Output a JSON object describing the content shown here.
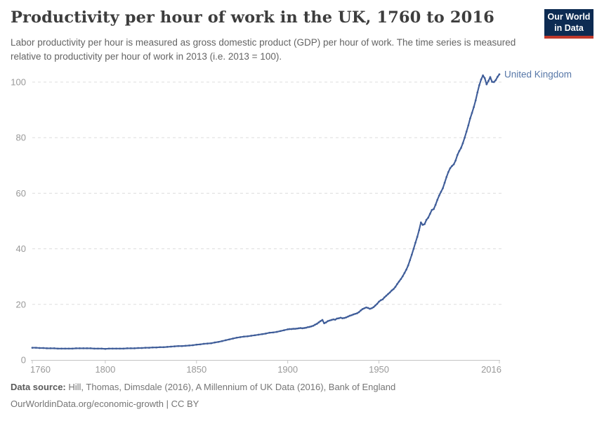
{
  "header": {
    "title": "Productivity per hour of work in the UK, 1760 to 2016",
    "subtitle": "Labor productivity per hour is measured as gross domestic product (GDP) per hour of work. The time series is measured relative to productivity per hour of work in 2013 (i.e. 2013 = 100).",
    "logo_line1": "Our World",
    "logo_line2": "in Data",
    "logo_bg_color": "#0d2b52",
    "logo_stripe_color": "#c0392b"
  },
  "chart_data": {
    "type": "line",
    "title": "Productivity per hour of work in the UK, 1760 to 2016",
    "xlabel": "",
    "ylabel": "",
    "xlim": [
      1760,
      2016
    ],
    "ylim": [
      0,
      105
    ],
    "x_ticks": [
      1760,
      1800,
      1850,
      1900,
      1950,
      2016
    ],
    "y_ticks": [
      0,
      20,
      40,
      60,
      80,
      100
    ],
    "grid": "dashed-horizontal",
    "legend": "end-of-line-label",
    "grid_color": "#dddddd",
    "axis_color": "#c4c4c4",
    "tick_text_color": "#999999",
    "series": [
      {
        "name": "United Kingdom",
        "color": "#3f5d99",
        "label_color": "#5878a8",
        "points": [
          [
            1760,
            4.4
          ],
          [
            1762,
            4.4
          ],
          [
            1764,
            4.3
          ],
          [
            1766,
            4.3
          ],
          [
            1768,
            4.2
          ],
          [
            1770,
            4.2
          ],
          [
            1772,
            4.2
          ],
          [
            1774,
            4.1
          ],
          [
            1776,
            4.1
          ],
          [
            1778,
            4.1
          ],
          [
            1780,
            4.1
          ],
          [
            1782,
            4.1
          ],
          [
            1784,
            4.2
          ],
          [
            1786,
            4.2
          ],
          [
            1788,
            4.2
          ],
          [
            1790,
            4.2
          ],
          [
            1792,
            4.2
          ],
          [
            1794,
            4.1
          ],
          [
            1796,
            4.1
          ],
          [
            1798,
            4.1
          ],
          [
            1800,
            4.0
          ],
          [
            1802,
            4.1
          ],
          [
            1804,
            4.1
          ],
          [
            1806,
            4.1
          ],
          [
            1808,
            4.1
          ],
          [
            1810,
            4.1
          ],
          [
            1812,
            4.2
          ],
          [
            1814,
            4.2
          ],
          [
            1816,
            4.2
          ],
          [
            1818,
            4.3
          ],
          [
            1820,
            4.3
          ],
          [
            1822,
            4.4
          ],
          [
            1824,
            4.4
          ],
          [
            1826,
            4.5
          ],
          [
            1828,
            4.5
          ],
          [
            1830,
            4.6
          ],
          [
            1832,
            4.6
          ],
          [
            1834,
            4.7
          ],
          [
            1836,
            4.8
          ],
          [
            1838,
            4.9
          ],
          [
            1840,
            5.0
          ],
          [
            1842,
            5.0
          ],
          [
            1844,
            5.1
          ],
          [
            1846,
            5.2
          ],
          [
            1848,
            5.3
          ],
          [
            1850,
            5.5
          ],
          [
            1852,
            5.6
          ],
          [
            1854,
            5.8
          ],
          [
            1856,
            5.9
          ],
          [
            1858,
            6.0
          ],
          [
            1860,
            6.3
          ],
          [
            1862,
            6.5
          ],
          [
            1864,
            6.8
          ],
          [
            1866,
            7.1
          ],
          [
            1868,
            7.4
          ],
          [
            1870,
            7.7
          ],
          [
            1872,
            8.0
          ],
          [
            1874,
            8.2
          ],
          [
            1876,
            8.4
          ],
          [
            1878,
            8.5
          ],
          [
            1880,
            8.7
          ],
          [
            1882,
            8.9
          ],
          [
            1884,
            9.1
          ],
          [
            1886,
            9.3
          ],
          [
            1888,
            9.5
          ],
          [
            1890,
            9.8
          ],
          [
            1892,
            9.9
          ],
          [
            1894,
            10.1
          ],
          [
            1896,
            10.4
          ],
          [
            1898,
            10.7
          ],
          [
            1900,
            11.0
          ],
          [
            1901,
            11.1
          ],
          [
            1902,
            11.1
          ],
          [
            1903,
            11.2
          ],
          [
            1904,
            11.2
          ],
          [
            1905,
            11.3
          ],
          [
            1906,
            11.4
          ],
          [
            1907,
            11.5
          ],
          [
            1908,
            11.4
          ],
          [
            1909,
            11.5
          ],
          [
            1910,
            11.6
          ],
          [
            1911,
            11.8
          ],
          [
            1912,
            11.9
          ],
          [
            1913,
            12.1
          ],
          [
            1914,
            12.3
          ],
          [
            1915,
            12.7
          ],
          [
            1916,
            13.0
          ],
          [
            1917,
            13.5
          ],
          [
            1918,
            14.0
          ],
          [
            1919,
            14.4
          ],
          [
            1920,
            13.2
          ],
          [
            1921,
            13.5
          ],
          [
            1922,
            14.0
          ],
          [
            1923,
            14.2
          ],
          [
            1924,
            14.4
          ],
          [
            1925,
            14.6
          ],
          [
            1926,
            14.5
          ],
          [
            1927,
            14.9
          ],
          [
            1928,
            15.0
          ],
          [
            1929,
            15.2
          ],
          [
            1930,
            15.0
          ],
          [
            1931,
            15.1
          ],
          [
            1932,
            15.3
          ],
          [
            1933,
            15.6
          ],
          [
            1934,
            15.9
          ],
          [
            1935,
            16.1
          ],
          [
            1936,
            16.4
          ],
          [
            1937,
            16.6
          ],
          [
            1938,
            16.8
          ],
          [
            1939,
            17.2
          ],
          [
            1940,
            17.8
          ],
          [
            1941,
            18.3
          ],
          [
            1942,
            18.6
          ],
          [
            1943,
            18.9
          ],
          [
            1944,
            18.7
          ],
          [
            1945,
            18.4
          ],
          [
            1946,
            18.6
          ],
          [
            1947,
            19.0
          ],
          [
            1948,
            19.6
          ],
          [
            1949,
            20.2
          ],
          [
            1950,
            21.0
          ],
          [
            1951,
            21.5
          ],
          [
            1952,
            21.8
          ],
          [
            1953,
            22.5
          ],
          [
            1954,
            23.1
          ],
          [
            1955,
            23.7
          ],
          [
            1956,
            24.3
          ],
          [
            1957,
            25.0
          ],
          [
            1958,
            25.5
          ],
          [
            1959,
            26.3
          ],
          [
            1960,
            27.3
          ],
          [
            1961,
            28.2
          ],
          [
            1962,
            29.1
          ],
          [
            1963,
            30.1
          ],
          [
            1964,
            31.3
          ],
          [
            1965,
            32.5
          ],
          [
            1966,
            34.0
          ],
          [
            1967,
            35.9
          ],
          [
            1968,
            37.9
          ],
          [
            1969,
            40.0
          ],
          [
            1970,
            42.2
          ],
          [
            1971,
            44.3
          ],
          [
            1972,
            46.7
          ],
          [
            1973,
            49.5
          ],
          [
            1974,
            48.6
          ],
          [
            1975,
            48.9
          ],
          [
            1976,
            50.4
          ],
          [
            1977,
            51.2
          ],
          [
            1978,
            52.6
          ],
          [
            1979,
            54.0
          ],
          [
            1980,
            54.3
          ],
          [
            1981,
            55.8
          ],
          [
            1982,
            57.6
          ],
          [
            1983,
            59.2
          ],
          [
            1984,
            60.5
          ],
          [
            1985,
            61.8
          ],
          [
            1986,
            63.8
          ],
          [
            1987,
            65.8
          ],
          [
            1988,
            67.6
          ],
          [
            1989,
            69.0
          ],
          [
            1990,
            69.8
          ],
          [
            1991,
            70.4
          ],
          [
            1992,
            71.8
          ],
          [
            1993,
            73.8
          ],
          [
            1994,
            75.2
          ],
          [
            1995,
            76.3
          ],
          [
            1996,
            78.0
          ],
          [
            1997,
            80.0
          ],
          [
            1998,
            82.2
          ],
          [
            1999,
            84.4
          ],
          [
            2000,
            86.9
          ],
          [
            2001,
            88.9
          ],
          [
            2002,
            91.0
          ],
          [
            2003,
            93.4
          ],
          [
            2004,
            96.3
          ],
          [
            2005,
            98.9
          ],
          [
            2006,
            100.9
          ],
          [
            2007,
            102.4
          ],
          [
            2008,
            101.4
          ],
          [
            2009,
            99.2
          ],
          [
            2010,
            100.4
          ],
          [
            2011,
            101.8
          ],
          [
            2012,
            100.1
          ],
          [
            2013,
            100.0
          ],
          [
            2014,
            100.7
          ],
          [
            2015,
            101.9
          ],
          [
            2016,
            102.8
          ]
        ]
      }
    ]
  },
  "footer": {
    "source_label": "Data source:",
    "source_text": "Hill, Thomas, Dimsdale (2016), A Millennium of UK Data (2016), Bank of England",
    "link": "OurWorldinData.org/economic-growth",
    "separator": " | ",
    "license": "CC BY"
  }
}
